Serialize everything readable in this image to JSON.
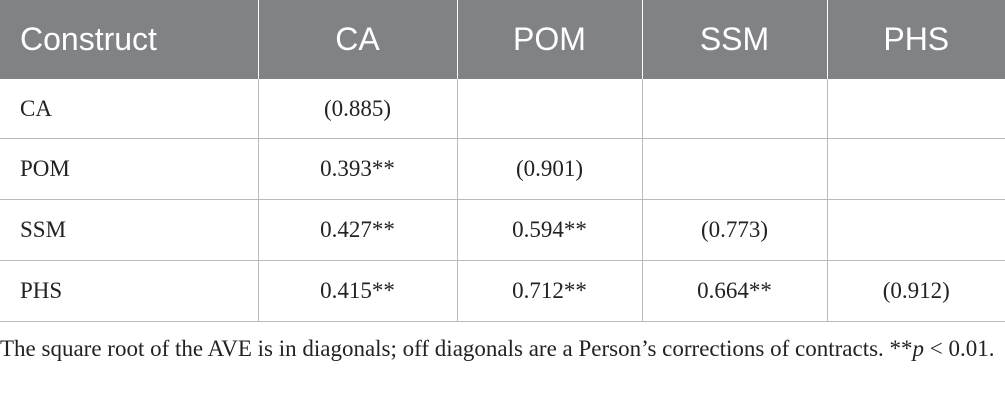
{
  "table": {
    "headers": [
      "Construct",
      "CA",
      "POM",
      "SSM",
      "PHS"
    ],
    "rows": [
      [
        "CA",
        "(0.885)",
        "",
        "",
        ""
      ],
      [
        "POM",
        "0.393**",
        "(0.901)",
        "",
        ""
      ],
      [
        "SSM",
        "0.427**",
        "0.594**",
        "(0.773)",
        ""
      ],
      [
        "PHS",
        "0.415**",
        "0.712**",
        "0.664**",
        "(0.912)"
      ]
    ]
  },
  "footnote": {
    "text": "The square root of the AVE is in diagonals; off diagonals are a Person’s corrections of contracts. **",
    "p_symbol": "p",
    "p_rest": " < 0.01."
  },
  "colors": {
    "header_bg": "#808285",
    "header_text": "#ffffff",
    "grid_line": "#b9b9b9",
    "body_text": "#222222"
  }
}
